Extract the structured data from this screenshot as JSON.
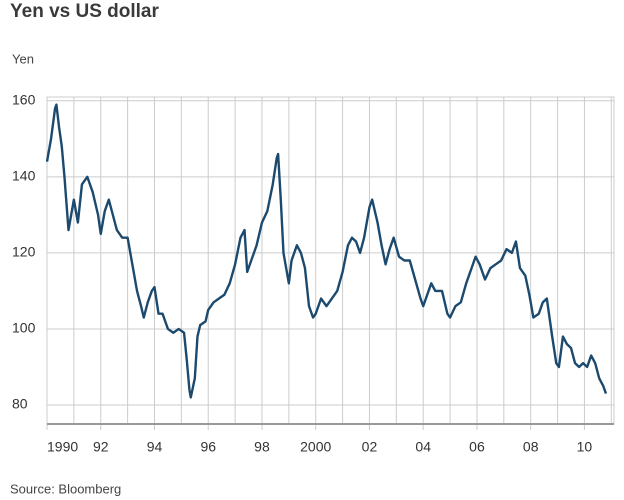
{
  "chart_data": {
    "type": "line",
    "title": "Yen vs US dollar",
    "y_label": "Yen",
    "source": "Source: Bloomberg",
    "color": "#1c4a6e",
    "grid": true,
    "xlim": [
      1990,
      2011.1
    ],
    "ylim": [
      75,
      161
    ],
    "yticks": [
      80,
      100,
      120,
      140,
      160
    ],
    "xticks": [
      1990,
      {
        "value": 1992,
        "label": "92"
      },
      {
        "value": 1994,
        "label": "94"
      },
      {
        "value": 1996,
        "label": "96"
      },
      {
        "value": 1998,
        "label": "98"
      },
      2000,
      {
        "value": 2002,
        "label": "02"
      },
      {
        "value": 2004,
        "label": "04"
      },
      {
        "value": 2006,
        "label": "06"
      },
      {
        "value": 2008,
        "label": "08"
      },
      {
        "value": 2010,
        "label": "10"
      }
    ],
    "x_minor_ticks": [
      1991,
      1993,
      1995,
      1997,
      1999,
      2001,
      2003,
      2005,
      2007,
      2009,
      2011
    ],
    "x": [
      1990.0,
      1990.15,
      1990.3,
      1990.35,
      1990.45,
      1990.55,
      1990.65,
      1990.8,
      1990.9,
      1991.0,
      1991.15,
      1991.3,
      1991.5,
      1991.7,
      1991.9,
      1992.0,
      1992.15,
      1992.3,
      1992.45,
      1992.6,
      1992.8,
      1993.0,
      1993.2,
      1993.35,
      1993.5,
      1993.6,
      1993.75,
      1993.9,
      1994.0,
      1994.15,
      1994.3,
      1994.5,
      1994.7,
      1994.9,
      1995.1,
      1995.2,
      1995.3,
      1995.35,
      1995.5,
      1995.6,
      1995.7,
      1995.9,
      1996.0,
      1996.2,
      1996.4,
      1996.6,
      1996.8,
      1997.0,
      1997.2,
      1997.35,
      1997.45,
      1997.6,
      1997.8,
      1998.0,
      1998.2,
      1998.4,
      1998.55,
      1998.6,
      1998.7,
      1998.8,
      1998.9,
      1999.0,
      1999.1,
      1999.3,
      1999.45,
      1999.6,
      1999.75,
      1999.9,
      2000.0,
      2000.2,
      2000.4,
      2000.6,
      2000.8,
      2001.0,
      2001.2,
      2001.35,
      2001.5,
      2001.65,
      2001.8,
      2002.0,
      2002.1,
      2002.3,
      2002.45,
      2002.6,
      2002.75,
      2002.9,
      2003.1,
      2003.3,
      2003.5,
      2003.7,
      2003.9,
      2004.0,
      2004.2,
      2004.3,
      2004.45,
      2004.7,
      2004.9,
      2005.0,
      2005.2,
      2005.4,
      2005.6,
      2005.8,
      2005.95,
      2006.1,
      2006.3,
      2006.5,
      2006.7,
      2006.9,
      2007.1,
      2007.3,
      2007.45,
      2007.6,
      2007.8,
      2007.95,
      2008.1,
      2008.3,
      2008.45,
      2008.6,
      2008.8,
      2008.95,
      2009.05,
      2009.2,
      2009.35,
      2009.5,
      2009.65,
      2009.8,
      2009.95,
      2010.1,
      2010.25,
      2010.4,
      2010.55,
      2010.7,
      2010.8
    ],
    "values": [
      144,
      150,
      158,
      159,
      153,
      148,
      140,
      126,
      130,
      134,
      128,
      138,
      140,
      136,
      130,
      125,
      131,
      134,
      130,
      126,
      124,
      124,
      116,
      110,
      106,
      103,
      107,
      110,
      111,
      104,
      104,
      100,
      99,
      100,
      99,
      92,
      84,
      82,
      87,
      98,
      101,
      102,
      105,
      107,
      108,
      109,
      112,
      117,
      124,
      126,
      115,
      118,
      122,
      128,
      131,
      138,
      145,
      146,
      134,
      120,
      116,
      112,
      118,
      122,
      120,
      116,
      106,
      103,
      104,
      108,
      106,
      108,
      110,
      115,
      122,
      124,
      123,
      120,
      124,
      132,
      134,
      128,
      122,
      117,
      121,
      124,
      119,
      118,
      118,
      113,
      108,
      106,
      110,
      112,
      110,
      110,
      104,
      103,
      106,
      107,
      112,
      116,
      119,
      117,
      113,
      116,
      117,
      118,
      121,
      120,
      123,
      116,
      114,
      109,
      103,
      104,
      107,
      108,
      98,
      91,
      90,
      98,
      96,
      95,
      91,
      90,
      91,
      90,
      93,
      91,
      87,
      85,
      83
    ]
  }
}
